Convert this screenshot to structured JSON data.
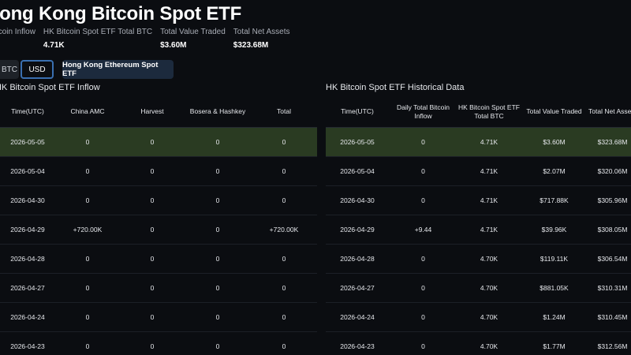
{
  "page": {
    "title": "Hong Kong Bitcoin Spot ETF"
  },
  "stats": [
    {
      "label": "Bitcoin Inflow",
      "value": ""
    },
    {
      "label": "HK Bitcoin Spot ETF Total BTC",
      "value": "4.71K"
    },
    {
      "label": "Total Value Traded",
      "value": "$3.60M"
    },
    {
      "label": "Total Net Assets",
      "value": "$323.68M"
    }
  ],
  "toggle": {
    "btc": "BTC",
    "usd": "USD",
    "selected": "USD"
  },
  "eth_button": "Hong Kong Ethereum Spot ETF",
  "inflow_table": {
    "title": "HK Bitcoin Spot ETF Inflow",
    "headers": [
      "Time(UTC)",
      "China AMC",
      "Harvest",
      "Bosera & Hashkey",
      "Total"
    ],
    "rows": [
      [
        "2026-05-05",
        "0",
        "0",
        "0",
        "0"
      ],
      [
        "2026-05-04",
        "0",
        "0",
        "0",
        "0"
      ],
      [
        "2026-04-30",
        "0",
        "0",
        "0",
        "0"
      ],
      [
        "2026-04-29",
        "+720.00K",
        "0",
        "0",
        "+720.00K"
      ],
      [
        "2026-04-28",
        "0",
        "0",
        "0",
        "0"
      ],
      [
        "2026-04-27",
        "0",
        "0",
        "0",
        "0"
      ],
      [
        "2026-04-24",
        "0",
        "0",
        "0",
        "0"
      ],
      [
        "2026-04-23",
        "0",
        "0",
        "0",
        "0"
      ]
    ]
  },
  "historical_table": {
    "title": "HK Bitcoin Spot ETF Historical Data",
    "headers": [
      "Time(UTC)",
      "Daily Total Bitcoin Inflow",
      "HK Bitcoin Spot ETF Total BTC",
      "Total Value Traded",
      "Total Net Assets"
    ],
    "rows": [
      [
        "2026-05-05",
        "0",
        "4.71K",
        "$3.60M",
        "$323.68M"
      ],
      [
        "2026-05-04",
        "0",
        "4.71K",
        "$2.07M",
        "$320.06M"
      ],
      [
        "2026-04-30",
        "0",
        "4.71K",
        "$717.88K",
        "$305.96M"
      ],
      [
        "2026-04-29",
        "+9.44",
        "4.71K",
        "$39.96K",
        "$308.05M"
      ],
      [
        "2026-04-28",
        "0",
        "4.70K",
        "$119.11K",
        "$306.54M"
      ],
      [
        "2026-04-27",
        "0",
        "4.70K",
        "$881.05K",
        "$310.31M"
      ],
      [
        "2026-04-24",
        "0",
        "4.70K",
        "$1.24M",
        "$310.45M"
      ],
      [
        "2026-04-23",
        "0",
        "4.70K",
        "$1.77M",
        "$312.56M"
      ]
    ]
  },
  "colors": {
    "positive": "#35b77a",
    "negative": "#e0494f",
    "highlight_row": "#2a3b22"
  }
}
